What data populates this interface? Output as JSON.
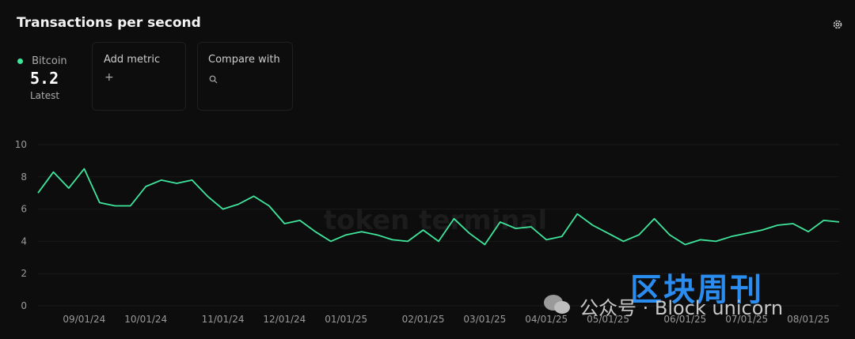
{
  "header": {
    "title": "Transactions per second"
  },
  "metric": {
    "latest": 5.2,
    "latest_label": "Latest"
  },
  "actions": {
    "add": "Add metric",
    "add_icon": "+",
    "compare": "Compare with"
  },
  "watermark": "token terminal",
  "overlay": {
    "brand": "区块周刊",
    "caption": "公众号 · Block unicorn"
  },
  "chart_data": {
    "type": "line",
    "categories": [
      null,
      null,
      null,
      "09/01/24",
      null,
      null,
      null,
      "10/01/24",
      null,
      null,
      null,
      null,
      "11/01/24",
      null,
      null,
      null,
      "12/01/24",
      null,
      null,
      null,
      "01/01/25",
      null,
      null,
      null,
      null,
      "02/01/25",
      null,
      null,
      null,
      "03/01/25",
      null,
      null,
      null,
      "04/01/25",
      null,
      null,
      null,
      "05/01/25",
      null,
      null,
      null,
      null,
      "06/01/25",
      null,
      null,
      null,
      "07/01/25",
      null,
      null,
      null,
      "08/01/25",
      null,
      null
    ],
    "series": [
      {
        "name": "Bitcoin",
        "color": "#3ee69c",
        "values": [
          7.0,
          8.3,
          7.3,
          8.5,
          6.4,
          6.2,
          6.2,
          7.4,
          7.8,
          7.6,
          7.8,
          6.8,
          6.0,
          6.3,
          6.8,
          6.2,
          5.1,
          5.3,
          4.6,
          4.0,
          4.4,
          4.6,
          4.4,
          4.1,
          4.0,
          4.7,
          4.0,
          5.4,
          4.5,
          3.8,
          5.2,
          4.8,
          4.9,
          4.1,
          4.3,
          5.7,
          5.0,
          4.5,
          4.0,
          4.4,
          5.4,
          4.4,
          3.8,
          4.1,
          4.0,
          4.3,
          4.5,
          4.7,
          5.0,
          5.1,
          4.6,
          5.3,
          5.2
        ]
      }
    ],
    "ylim": [
      0,
      10
    ],
    "yticks": [
      0,
      2,
      4,
      6,
      8,
      10
    ],
    "grid": true
  }
}
